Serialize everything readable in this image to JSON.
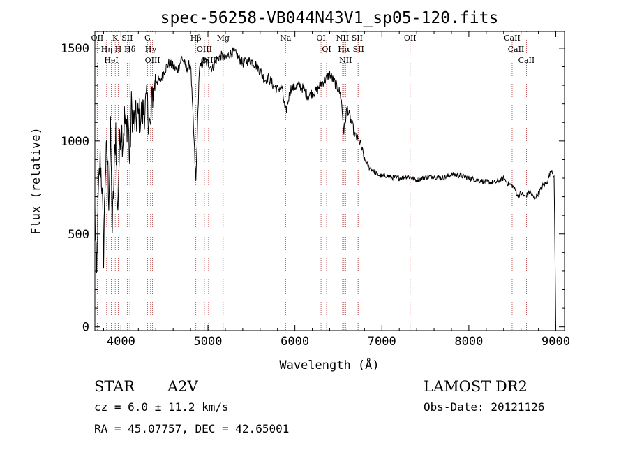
{
  "chart_data": {
    "type": "line",
    "title": "spec-56258-VB044N43V1_sp05-120.fits",
    "xlabel": "Wavelength (Å)",
    "ylabel": "Flux (relative)",
    "xlim": [
      3700,
      9100
    ],
    "ylim": [
      -20,
      1590
    ],
    "xticks": [
      4000,
      5000,
      6000,
      7000,
      8000,
      9000
    ],
    "yticks": [
      0,
      500,
      1000,
      1500
    ],
    "grid": false,
    "spectrum": {
      "x": [
        3700,
        3720,
        3740,
        3760,
        3780,
        3800,
        3820,
        3840,
        3860,
        3880,
        3900,
        3920,
        3940,
        3960,
        3980,
        4000,
        4020,
        4040,
        4060,
        4080,
        4100,
        4120,
        4150,
        4200,
        4250,
        4300,
        4340,
        4360,
        4400,
        4450,
        4500,
        4550,
        4600,
        4650,
        4700,
        4750,
        4800,
        4861,
        4900,
        4950,
        5000,
        5050,
        5100,
        5150,
        5200,
        5250,
        5300,
        5350,
        5400,
        5450,
        5500,
        5550,
        5600,
        5650,
        5700,
        5750,
        5800,
        5850,
        5893,
        5950,
        6000,
        6050,
        6100,
        6150,
        6200,
        6250,
        6300,
        6350,
        6400,
        6450,
        6500,
        6530,
        6563,
        6600,
        6650,
        6700,
        6750,
        6800,
        6850,
        6900,
        6950,
        7000,
        7050,
        7100,
        7200,
        7300,
        7400,
        7500,
        7600,
        7700,
        7800,
        7900,
        8000,
        8100,
        8200,
        8300,
        8400,
        8450,
        8500,
        8542,
        8560,
        8600,
        8650,
        8700,
        8750,
        8800,
        8850,
        8900,
        8950,
        8980,
        9000
      ],
      "y": [
        620,
        250,
        700,
        900,
        780,
        400,
        850,
        950,
        700,
        1030,
        520,
        800,
        1080,
        600,
        920,
        1100,
        1000,
        1120,
        1050,
        1150,
        880,
        1180,
        1100,
        1130,
        1150,
        1200,
        1050,
        1250,
        1330,
        1320,
        1380,
        1420,
        1400,
        1380,
        1450,
        1390,
        1420,
        780,
        1380,
        1430,
        1420,
        1390,
        1440,
        1460,
        1440,
        1470,
        1480,
        1450,
        1420,
        1430,
        1430,
        1410,
        1380,
        1330,
        1340,
        1300,
        1280,
        1290,
        1150,
        1280,
        1290,
        1300,
        1280,
        1240,
        1260,
        1270,
        1310,
        1330,
        1360,
        1320,
        1280,
        1240,
        1050,
        1180,
        1100,
        1020,
        990,
        900,
        860,
        840,
        820,
        810,
        815,
        805,
        800,
        810,
        790,
        805,
        810,
        800,
        820,
        815,
        800,
        790,
        780,
        775,
        800,
        770,
        760,
        730,
        700,
        720,
        700,
        730,
        690,
        720,
        760,
        780,
        850,
        810,
        0
      ]
    },
    "lines": [
      {
        "name": "OII",
        "x": 3727
      },
      {
        "name": "Hη",
        "x": 3835
      },
      {
        "name": "HeI",
        "x": 3889
      },
      {
        "name": "K",
        "x": 3934
      },
      {
        "name": "H",
        "x": 3969
      },
      {
        "name": "SII",
        "x": 4072
      },
      {
        "name": "Hδ",
        "x": 4102
      },
      {
        "name": "G",
        "x": 4305
      },
      {
        "name": "Hγ",
        "x": 4341
      },
      {
        "name": "OIII",
        "x": 4363
      },
      {
        "name": "Hβ",
        "x": 4861
      },
      {
        "name": "OIII",
        "x": 4959
      },
      {
        "name": "OIII",
        "x": 5007
      },
      {
        "name": "Mg",
        "x": 5175
      },
      {
        "name": "Na",
        "x": 5893
      },
      {
        "name": "OI",
        "x": 6300
      },
      {
        "name": "OI",
        "x": 6364
      },
      {
        "name": "NII",
        "x": 6548
      },
      {
        "name": "Hα",
        "x": 6563
      },
      {
        "name": "NII",
        "x": 6583
      },
      {
        "name": "SII",
        "x": 6716
      },
      {
        "name": "SII",
        "x": 6731
      },
      {
        "name": "OII",
        "x": 7325
      },
      {
        "name": "CaII",
        "x": 8498
      },
      {
        "name": "CaII",
        "x": 8542
      },
      {
        "name": "CaII",
        "x": 8662
      }
    ],
    "line_color": "#b03030",
    "spectrum_color": "#000000"
  },
  "info": {
    "class": "STAR",
    "subclass": "A2V",
    "survey": "LAMOST DR2",
    "cz": "cz = 6.0 ± 11.2 km/s",
    "obs_date": "Obs-Date: 20121126",
    "coords": "RA =  45.07757, DEC =  42.65001"
  }
}
